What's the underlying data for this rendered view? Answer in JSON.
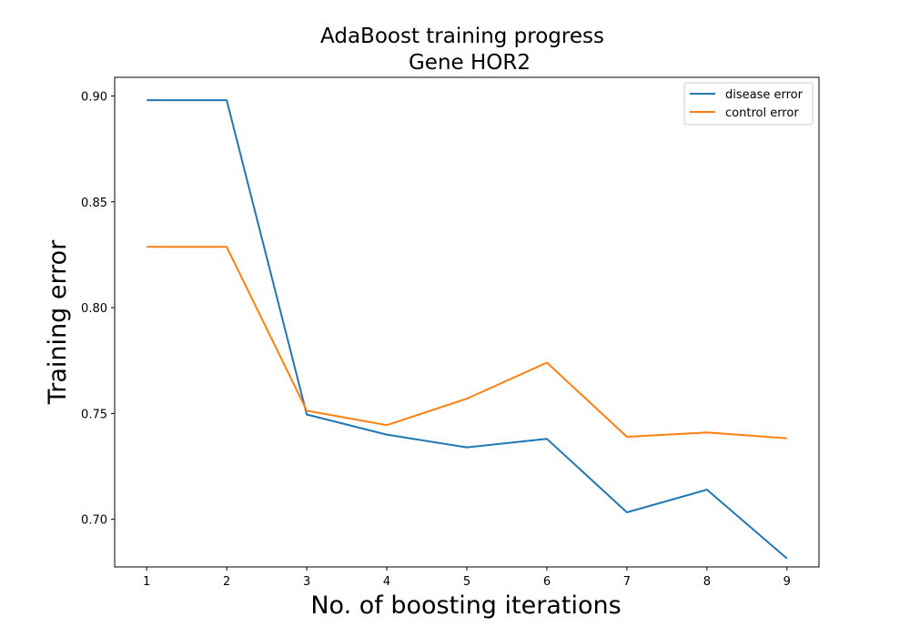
{
  "chart_data": {
    "type": "line",
    "title": "AdaBoost training progress",
    "subtitle": "Gene HOR2",
    "xlabel": "No. of boosting iterations",
    "ylabel": "Training error",
    "x": [
      1,
      2,
      3,
      4,
      5,
      6,
      7,
      8,
      9
    ],
    "x_ticks": [
      "1",
      "2",
      "3",
      "4",
      "5",
      "6",
      "7",
      "8",
      "9"
    ],
    "y_ticks": [
      "0.70",
      "0.75",
      "0.80",
      "0.85",
      "0.90"
    ],
    "xlim": [
      0.6,
      9.4
    ],
    "ylim": [
      0.6775,
      0.9088
    ],
    "grid": false,
    "legend_position": "upper-right",
    "series": [
      {
        "name": "disease error",
        "color": "#1f77b4",
        "values": [
          0.898,
          0.898,
          0.7495,
          0.74,
          0.734,
          0.738,
          0.7033,
          0.714,
          0.6815
        ]
      },
      {
        "name": "control error",
        "color": "#ff7f0e",
        "values": [
          0.8287,
          0.8287,
          0.7513,
          0.7445,
          0.757,
          0.774,
          0.739,
          0.741,
          0.7383
        ]
      }
    ]
  }
}
